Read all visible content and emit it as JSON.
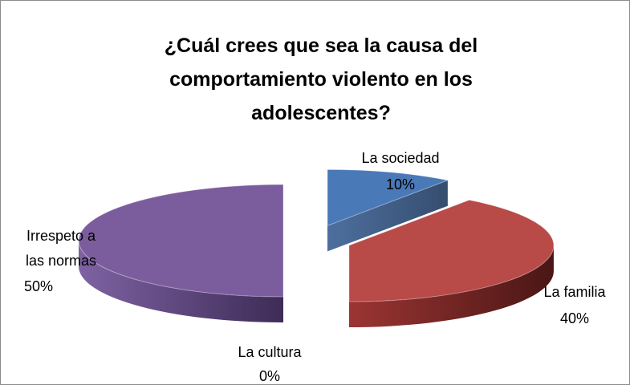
{
  "chart_data": {
    "type": "pie",
    "title_lines": [
      "¿Cuál crees que sea la causa del",
      "comportamiento violento en los",
      "adolescentes?"
    ],
    "three_d": true,
    "exploded": true,
    "slices": [
      {
        "label_lines": [
          "La sociedad"
        ],
        "pct_label": "10%",
        "value": 10,
        "color": "#4a79b8"
      },
      {
        "label_lines": [
          "La familia"
        ],
        "pct_label": "40%",
        "value": 40,
        "color": "#b84a48"
      },
      {
        "label_lines": [
          "La cultura"
        ],
        "pct_label": "0%",
        "value": 0,
        "color": "#93b356"
      },
      {
        "label_lines": [
          "Irrespeto a",
          "las normas"
        ],
        "pct_label": "50%",
        "value": 50,
        "color": "#7b5d9e"
      }
    ]
  }
}
